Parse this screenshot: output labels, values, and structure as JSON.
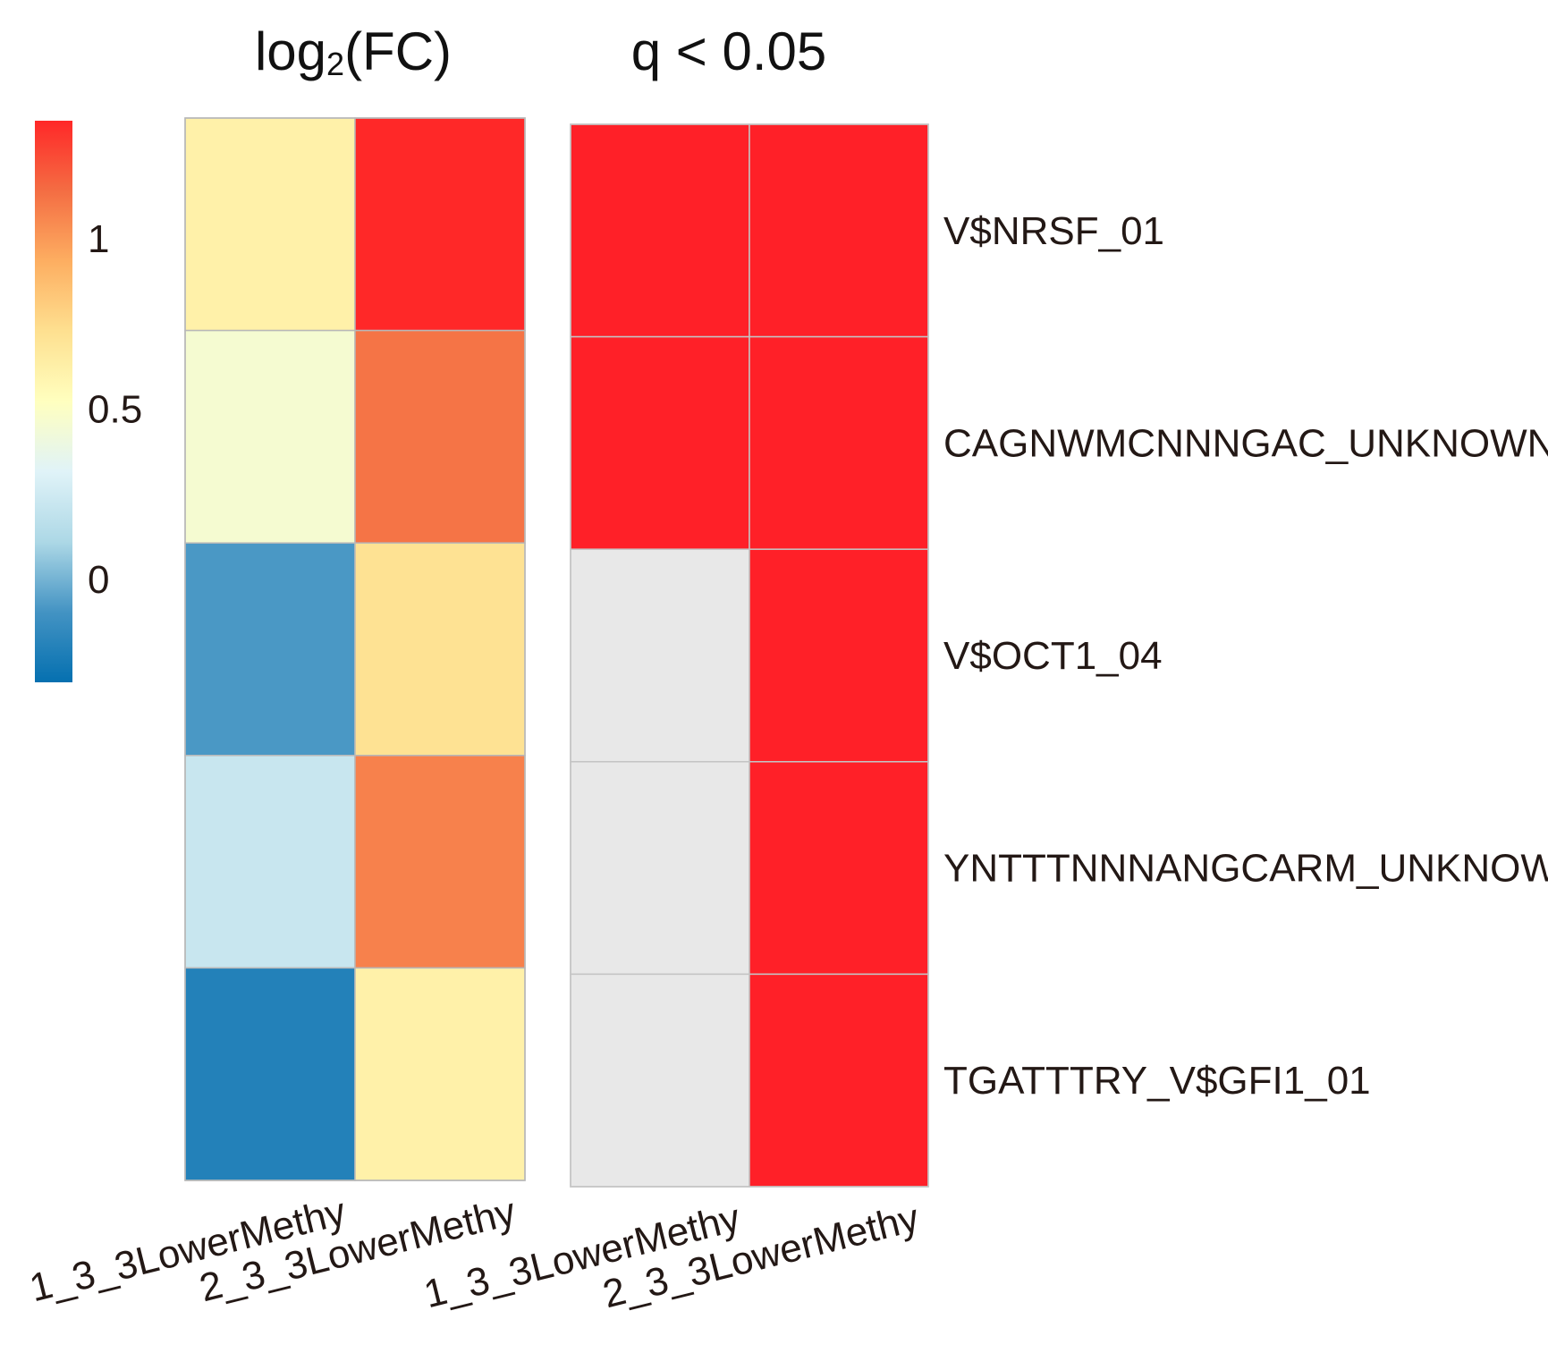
{
  "chart_data": {
    "type": "heatmap",
    "rows": [
      "V$NRSF_01",
      "CAGNWMCNNNGAC_UNKNOWN",
      "V$OCT1_04",
      "YNTTTNNNANGCARM_UNKNOWN",
      "TGATTTRY_V$GFI1_01"
    ],
    "panels": [
      {
        "title_main": "log",
        "title_sub": "2",
        "title_rest": "(FC)",
        "columns": [
          "1_3_3LowerMethy",
          "2_3_3LowerMethy"
        ],
        "values": [
          [
            0.62,
            1.4
          ],
          [
            0.46,
            1.12
          ],
          [
            -0.08,
            0.72
          ],
          [
            0.22,
            1.08
          ],
          [
            -0.2,
            0.62
          ]
        ],
        "colorbar": {
          "min": -0.3,
          "max": 1.35,
          "ticks": [
            {
              "value": 1,
              "label": "1"
            },
            {
              "value": 0.5,
              "label": "0.5"
            },
            {
              "value": 0,
              "label": "0"
            }
          ],
          "colors": [
            "#0570b0",
            "#4393c3",
            "#add8e6",
            "#e0f3f8",
            "#ffffbf",
            "#fee090",
            "#fdae61",
            "#f46d43",
            "#ff2828"
          ]
        }
      },
      {
        "title": "q < 0.05",
        "columns": [
          "1_3_3LowerMethy",
          "2_3_3LowerMethy"
        ],
        "values": [
          [
            true,
            true
          ],
          [
            true,
            true
          ],
          [
            false,
            true
          ],
          [
            false,
            true
          ],
          [
            false,
            true
          ]
        ],
        "colors": {
          "significant": "#ff2028",
          "not_significant": "#e8e8e8"
        }
      }
    ]
  }
}
